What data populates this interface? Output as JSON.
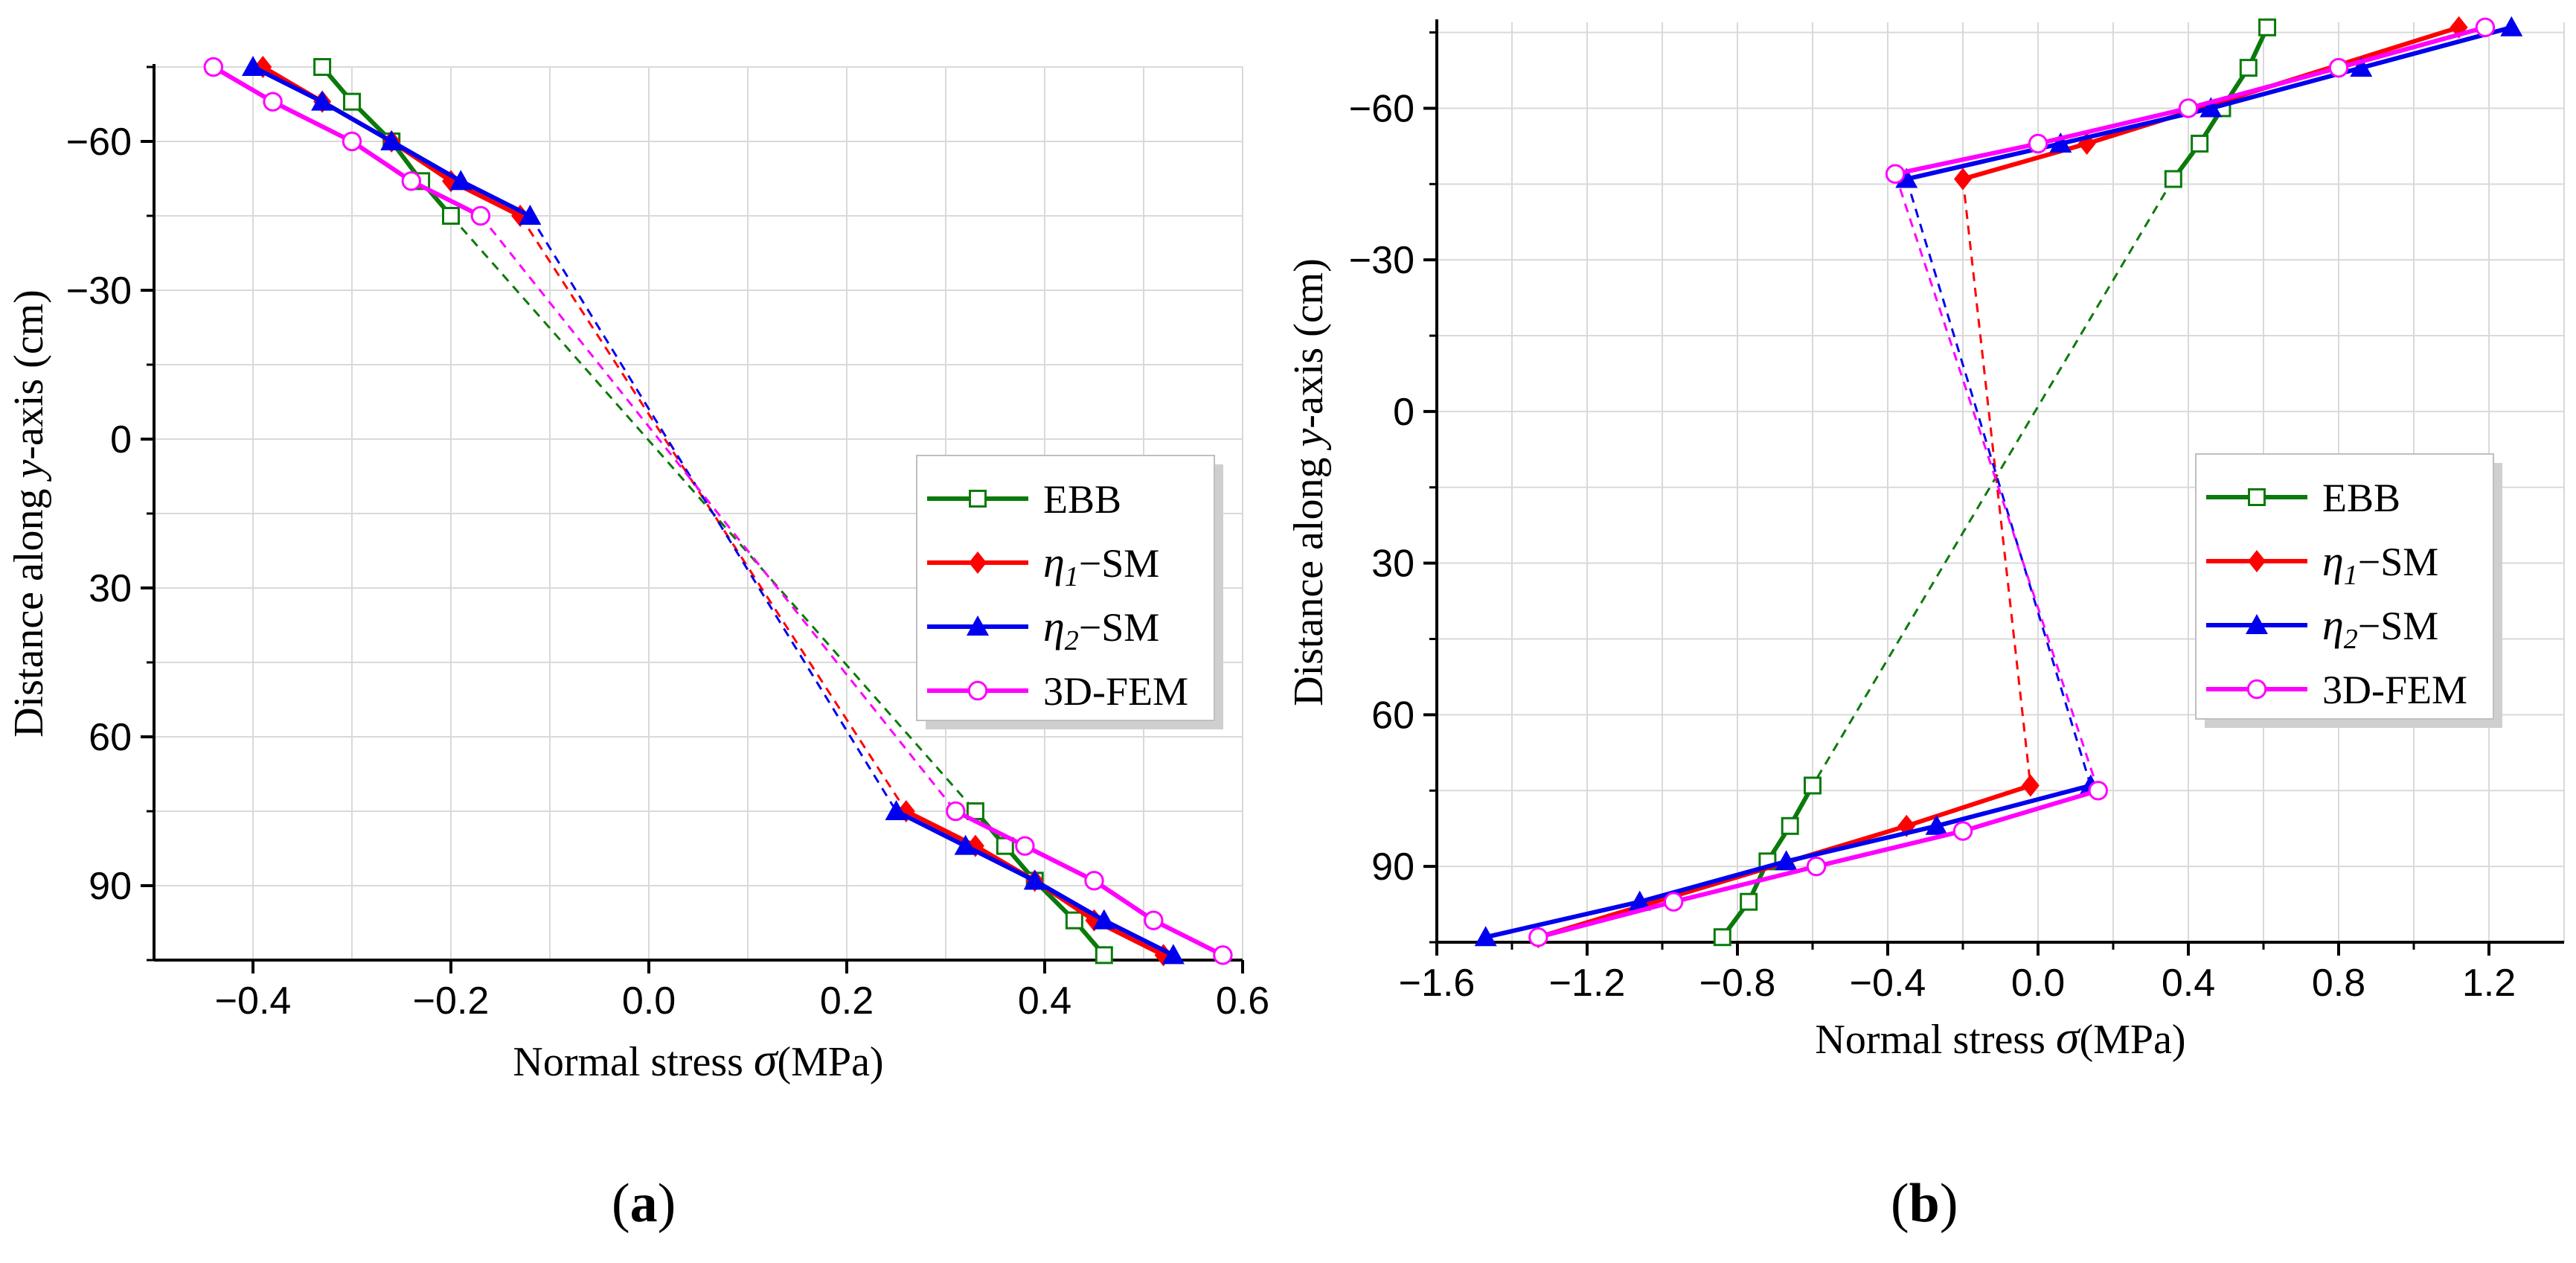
{
  "figure_labels": {
    "a": "a",
    "b": "b"
  },
  "legend_labels": {
    "ebb": "EBB",
    "eta1_symbol": "η",
    "eta1_sub": "1",
    "eta1_rest": "−SM",
    "eta2_symbol": "η",
    "eta2_sub": "2",
    "eta2_rest": "−SM",
    "fem": "3D-FEM"
  },
  "colors": {
    "EBB": "#0a7a0a",
    "eta1_SM": "#ff0000",
    "eta2_SM": "#0000ee",
    "FEM_3D": "#ff00ff",
    "grid": "#d9d9d9"
  },
  "chart_data": [
    {
      "id": "a",
      "type": "line",
      "xlabel_text": "Normal stress",
      "xlabel_symbol": "σ",
      "xlabel_unit": "(MPa)",
      "ylabel_text": "Distance along",
      "ylabel_symbol": "y",
      "ylabel_rest": "-axis (cm)",
      "xlim": [
        -0.5,
        0.6
      ],
      "ylim": [
        105,
        -75
      ],
      "xticks": [
        -0.4,
        -0.2,
        0.0,
        0.2,
        0.4,
        0.6
      ],
      "xtick_labels": [
        "−0.4",
        "−0.2",
        "0.0",
        "0.2",
        "0.4",
        "0.6"
      ],
      "yticks": [
        -60,
        -30,
        0,
        30,
        60,
        90
      ],
      "ytick_labels": [
        "−60",
        "−30",
        "0",
        "30",
        "60",
        "90"
      ],
      "legend_position": "center-right",
      "series": [
        {
          "name": "EBB",
          "marker": "open-square",
          "upper": {
            "y": [
              -75,
              -68,
              -60,
              -52,
              -45
            ],
            "x": [
              -0.33,
              -0.3,
              -0.26,
              -0.23,
              -0.2
            ]
          },
          "lower": {
            "y": [
              75,
              82,
              89,
              97,
              104
            ],
            "x": [
              0.33,
              0.36,
              0.39,
              0.43,
              0.46
            ]
          }
        },
        {
          "name": "η1−SM",
          "marker": "filled-diamond",
          "upper": {
            "y": [
              -75,
              -68,
              -60,
              -52,
              -45
            ],
            "x": [
              -0.39,
              -0.33,
              -0.26,
              -0.2,
              -0.13
            ]
          },
          "lower": {
            "y": [
              75,
              82,
              89,
              97,
              104
            ],
            "x": [
              0.26,
              0.33,
              0.39,
              0.45,
              0.52
            ]
          }
        },
        {
          "name": "η2−SM",
          "marker": "filled-triangle",
          "upper": {
            "y": [
              -75,
              -68,
              -60,
              -52,
              -45
            ],
            "x": [
              -0.4,
              -0.33,
              -0.26,
              -0.19,
              -0.12
            ]
          },
          "lower": {
            "y": [
              75,
              82,
              89,
              97,
              104
            ],
            "x": [
              0.25,
              0.32,
              0.39,
              0.46,
              0.53
            ]
          }
        },
        {
          "name": "3D-FEM",
          "marker": "open-circle",
          "upper": {
            "y": [
              -75,
              -68,
              -60,
              -52,
              -45
            ],
            "x": [
              -0.44,
              -0.38,
              -0.3,
              -0.24,
              -0.17
            ]
          },
          "lower": {
            "y": [
              75,
              82,
              89,
              97,
              104
            ],
            "x": [
              0.31,
              0.38,
              0.45,
              0.51,
              0.58
            ]
          }
        }
      ]
    },
    {
      "id": "b",
      "type": "line",
      "xlabel_text": "Normal stress",
      "xlabel_symbol": "σ",
      "xlabel_unit": "(MPa)",
      "ylabel_text": "Distance along",
      "ylabel_symbol": "y",
      "ylabel_rest": "-axis (cm)",
      "xlim": [
        -1.6,
        1.4
      ],
      "ylim": [
        105,
        -77
      ],
      "xticks": [
        -1.6,
        -1.2,
        -0.8,
        -0.4,
        0.0,
        0.4,
        0.8,
        1.2
      ],
      "xtick_labels": [
        "−1.6",
        "−1.2",
        "−0.8",
        "−0.4",
        "0.0",
        "0.4",
        "0.8",
        "1.2"
      ],
      "yticks": [
        -60,
        -30,
        0,
        30,
        60,
        90
      ],
      "ytick_labels": [
        "−60",
        "−30",
        "0",
        "30",
        "60",
        "90"
      ],
      "legend_position": "center-right",
      "series": [
        {
          "name": "EBB",
          "marker": "open-square",
          "upper": {
            "y": [
              -76,
              -68,
              -60,
              -53,
              -46
            ],
            "x": [
              0.61,
              0.56,
              0.49,
              0.43,
              0.36
            ]
          },
          "lower": {
            "y": [
              74,
              82,
              89,
              97,
              104
            ],
            "x": [
              -0.6,
              -0.66,
              -0.72,
              -0.77,
              -0.84
            ]
          }
        },
        {
          "name": "η1−SM",
          "marker": "filled-diamond",
          "upper": {
            "y": [
              -76,
              -53,
              -46
            ],
            "x": [
              1.12,
              0.13,
              -0.2
            ]
          },
          "lower": {
            "y": [
              74,
              82,
              104
            ],
            "x": [
              -0.02,
              -0.35,
              -1.33
            ]
          }
        },
        {
          "name": "η2−SM",
          "marker": "filled-triangle",
          "upper": {
            "y": [
              -76,
              -68,
              -60,
              -53,
              -46
            ],
            "x": [
              1.26,
              0.86,
              0.46,
              0.06,
              -0.35
            ]
          },
          "lower": {
            "y": [
              74,
              82,
              89,
              97,
              104
            ],
            "x": [
              0.14,
              -0.27,
              -0.67,
              -1.06,
              -1.47
            ]
          }
        },
        {
          "name": "3D-FEM",
          "marker": "open-circle",
          "upper": {
            "y": [
              -76,
              -68,
              -60,
              -53,
              -47
            ],
            "x": [
              1.19,
              0.8,
              0.4,
              0.0,
              -0.38
            ]
          },
          "lower": {
            "y": [
              75,
              83,
              90,
              97,
              104
            ],
            "x": [
              0.16,
              -0.2,
              -0.59,
              -0.97,
              -1.33
            ]
          }
        }
      ]
    }
  ]
}
